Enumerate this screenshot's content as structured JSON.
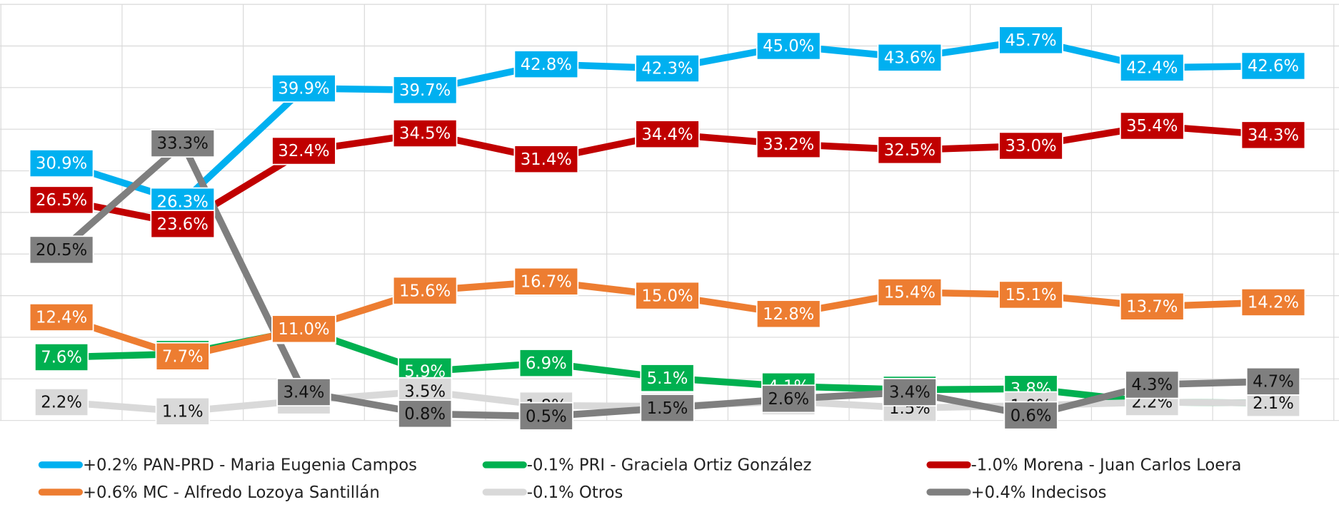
{
  "chart_data": {
    "type": "line",
    "categories": [
      null,
      null,
      null,
      null,
      null,
      null,
      null,
      null,
      null,
      null,
      null
    ],
    "ylim": [
      0,
      50
    ],
    "yticks": [
      0,
      5,
      10,
      15,
      20,
      25,
      30,
      35,
      40,
      45,
      50
    ],
    "grid": true,
    "series": [
      {
        "name": "+0.2% PAN-PRD - Maria Eugenia Campos",
        "color": "#00b0f0",
        "values": [
          30.9,
          26.3,
          39.9,
          39.7,
          42.8,
          42.3,
          45.0,
          43.6,
          45.7,
          42.4,
          42.6
        ],
        "value_labels": [
          "30.9%",
          "26.3%",
          "39.9%",
          "39.7%",
          "42.8%",
          "42.3%",
          "45.0%",
          "43.6%",
          "45.7%",
          "42.4%",
          "42.6%"
        ]
      },
      {
        "name": "-0.1% PRI - Graciela Ortiz González",
        "color": "#00b050",
        "values": [
          7.6,
          8.0,
          10.9,
          5.9,
          6.9,
          5.1,
          4.1,
          3.7,
          3.8,
          2.2,
          2.1
        ],
        "value_labels": [
          "7.6%",
          "8.0%",
          "10.9%",
          "5.9%",
          "6.9%",
          "5.1%",
          "4.1%",
          "3.7%",
          "3.8%",
          "2.2%",
          "2.1%"
        ]
      },
      {
        "name": "-1.0% Morena - Juan Carlos Loera",
        "color": "#c00000",
        "values": [
          26.5,
          23.6,
          32.4,
          34.5,
          31.4,
          34.4,
          33.2,
          32.5,
          33.0,
          35.4,
          34.3
        ],
        "value_labels": [
          "26.5%",
          "23.6%",
          "32.4%",
          "34.5%",
          "31.4%",
          "34.4%",
          "33.2%",
          "32.5%",
          "33.0%",
          "35.4%",
          "34.3%"
        ]
      },
      {
        "name": "+0.6% MC - Alfredo Lozoya Santillán",
        "color": "#ed7d31",
        "values": [
          12.4,
          7.7,
          11.0,
          15.6,
          16.7,
          15.0,
          12.8,
          15.4,
          15.1,
          13.7,
          14.2
        ],
        "value_labels": [
          "12.4%",
          "7.7%",
          "11.0%",
          "15.6%",
          "16.7%",
          "15.0%",
          "12.8%",
          "15.4%",
          "15.1%",
          "13.7%",
          "14.2%"
        ]
      },
      {
        "name": "-0.1% Otros",
        "color": "#d9d9d9",
        "values": [
          2.2,
          1.1,
          2.4,
          3.5,
          1.8,
          1.7,
          2.3,
          1.5,
          1.8,
          2.2,
          2.1
        ],
        "value_labels": [
          "2.2%",
          "1.1%",
          "2.4%",
          "3.5%",
          "1.8%",
          "1.7%",
          "2.3%",
          "1.5%",
          "1.8%",
          "2.2%",
          "2.1%"
        ]
      },
      {
        "name": "+0.4% Indecisos",
        "color": "#7f7f7f",
        "values": [
          20.5,
          33.3,
          3.4,
          0.8,
          0.5,
          1.5,
          2.6,
          3.4,
          0.6,
          4.3,
          4.7
        ],
        "value_labels": [
          "20.5%",
          "33.3%",
          "3.4%",
          "0.8%",
          "0.5%",
          "1.5%",
          "2.6%",
          "3.4%",
          "0.6%",
          "4.3%",
          "4.7%"
        ]
      }
    ]
  }
}
